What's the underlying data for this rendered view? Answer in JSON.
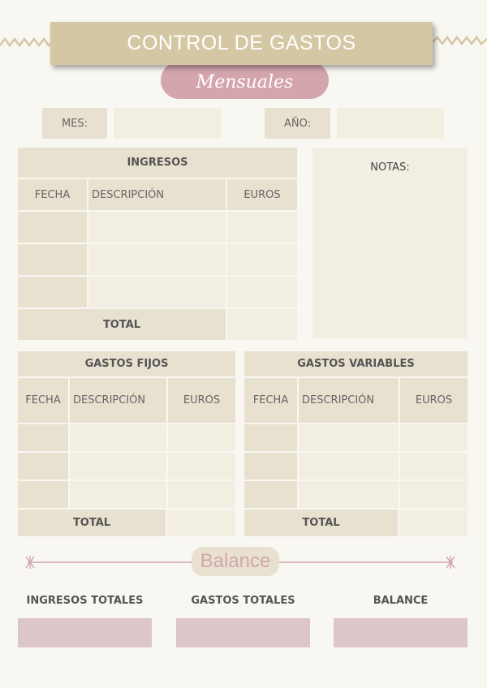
{
  "header": {
    "title": "CONTROL DE GASTOS",
    "subtitle": "Mensuales"
  },
  "period": {
    "month_label": "MES:",
    "month_value": "",
    "year_label": "AÑO:",
    "year_value": ""
  },
  "ingresos": {
    "title": "INGRESOS",
    "columns": [
      "FECHA",
      "DESCRIPCIÓN",
      "EUROS"
    ],
    "rows": [
      [
        "",
        "",
        ""
      ],
      [
        "",
        "",
        ""
      ],
      [
        "",
        "",
        ""
      ]
    ],
    "total_label": "TOTAL",
    "total_value": ""
  },
  "notas": {
    "label": "NOTAS:",
    "value": ""
  },
  "gastos_fijos": {
    "title": "GASTOS FIJOS",
    "columns": [
      "FECHA",
      "DESCRIPCIÓN",
      "EUROS"
    ],
    "rows": [
      [
        "",
        "",
        ""
      ],
      [
        "",
        "",
        ""
      ],
      [
        "",
        "",
        ""
      ]
    ],
    "total_label": "TOTAL",
    "total_value": ""
  },
  "gastos_variables": {
    "title": "GASTOS VARIABLES",
    "columns": [
      "FECHA",
      "DESCRIPCIÓN",
      "EUROS"
    ],
    "rows": [
      [
        "",
        "",
        ""
      ],
      [
        "",
        "",
        ""
      ],
      [
        "",
        "",
        ""
      ]
    ],
    "total_label": "TOTAL",
    "total_value": ""
  },
  "balance": {
    "title": "Balance",
    "items": [
      {
        "label": "INGRESOS TOTALES",
        "value": ""
      },
      {
        "label": "GASTOS TOTALES",
        "value": ""
      },
      {
        "label": "BALANCE",
        "value": ""
      }
    ]
  },
  "colors": {
    "background": "#f9f7f2",
    "banner": "#d4c7a4",
    "pink": "#d4a5ad",
    "header_cell": "#e8e1d0",
    "cell": "#f2eee2",
    "balance_box": "#dcc6c8"
  }
}
